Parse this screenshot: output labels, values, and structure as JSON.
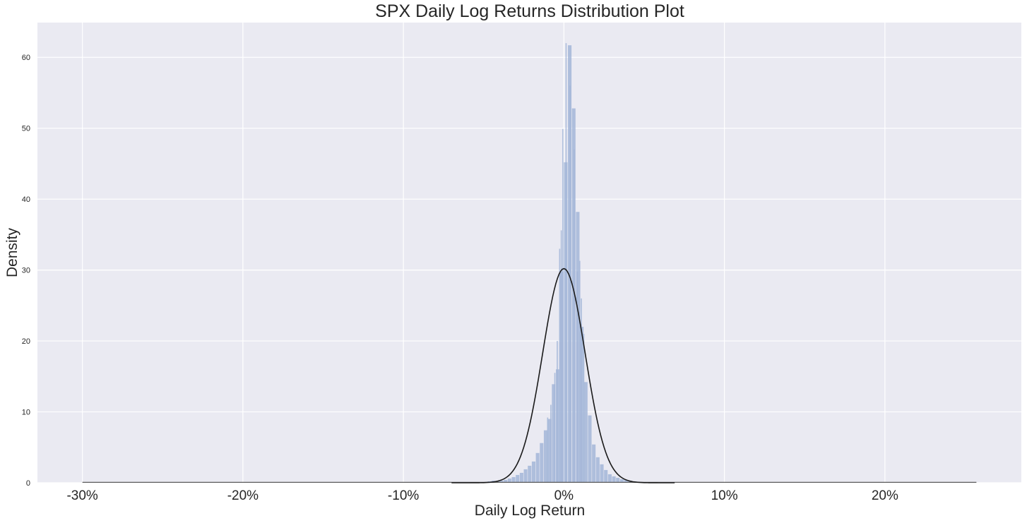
{
  "chart_data": {
    "type": "bar",
    "title": "SPX Daily Log Returns Distribution Plot",
    "xlabel": "Daily Log Return",
    "ylabel": "Density",
    "xlim": [
      -0.328,
      0.285
    ],
    "ylim": [
      0,
      64.9
    ],
    "x_ticks": [
      -0.3,
      -0.2,
      -0.1,
      0,
      0.1,
      0.2
    ],
    "x_tick_labels": [
      "-30%",
      "-20%",
      "-10%",
      "0%",
      "10%",
      "20%"
    ],
    "y_ticks": [
      0,
      10,
      20,
      30,
      40,
      50,
      60
    ],
    "y_tick_labels": [
      "0",
      "10",
      "20",
      "30",
      "40",
      "50",
      "60"
    ],
    "grid": true,
    "colors": {
      "background": "#eaeaf2",
      "grid": "#ffffff",
      "bars": "#a3b6d8",
      "curve": "#1a1a1a",
      "text": "#262626"
    },
    "histogram": {
      "bin_width": 0.0025,
      "bins": [
        [
          -0.0725,
          0.05
        ],
        [
          -0.07,
          0.05
        ],
        [
          -0.065,
          0.05
        ],
        [
          -0.0625,
          0.05
        ],
        [
          -0.06,
          0.1
        ],
        [
          -0.0575,
          0.05
        ],
        [
          -0.055,
          0.1
        ],
        [
          -0.05,
          0.1
        ],
        [
          -0.0475,
          0.2
        ],
        [
          -0.045,
          0.3
        ],
        [
          -0.0425,
          0.2
        ],
        [
          -0.04,
          0.3
        ],
        [
          -0.0375,
          0.4
        ],
        [
          -0.035,
          0.6
        ],
        [
          -0.0325,
          0.8
        ],
        [
          -0.03,
          1.1
        ],
        [
          -0.0275,
          1.4
        ],
        [
          -0.025,
          1.9
        ],
        [
          -0.0225,
          2.4
        ],
        [
          -0.02,
          3.0
        ],
        [
          -0.0175,
          4.2
        ],
        [
          -0.015,
          5.6
        ],
        [
          -0.0125,
          7.4
        ],
        [
          -0.01,
          9.0
        ],
        [
          -0.0075,
          13.9
        ],
        [
          -0.005,
          16.0
        ],
        [
          -0.0025,
          29.8
        ],
        [
          0.0,
          45.2
        ],
        [
          0.0025,
          61.7
        ],
        [
          0.005,
          52.8
        ],
        [
          0.0075,
          38.2
        ],
        [
          0.01,
          22.0
        ],
        [
          0.0125,
          14.2
        ],
        [
          0.015,
          9.5
        ],
        [
          0.0175,
          5.4
        ],
        [
          0.02,
          3.6
        ],
        [
          0.0225,
          2.6
        ],
        [
          0.025,
          1.8
        ],
        [
          0.0275,
          1.2
        ],
        [
          0.03,
          0.9
        ],
        [
          0.0325,
          0.7
        ],
        [
          0.035,
          0.5
        ],
        [
          0.0375,
          0.4
        ],
        [
          0.04,
          0.3
        ],
        [
          0.0425,
          0.2
        ],
        [
          0.045,
          0.15
        ],
        [
          0.0475,
          0.1
        ],
        [
          0.05,
          0.1
        ],
        [
          0.055,
          0.05
        ],
        [
          0.06,
          0.05
        ],
        [
          0.07,
          0.05
        ]
      ],
      "extra_peaks": [
        [
          -0.003,
          33.0
        ],
        [
          -0.001,
          49.9
        ],
        [
          0.001,
          62.0
        ],
        [
          0.0035,
          56.0
        ],
        [
          0.006,
          47.0
        ],
        [
          0.008,
          29.8
        ],
        [
          0.0095,
          31.3
        ],
        [
          0.0105,
          26.0
        ],
        [
          0.012,
          21.0
        ],
        [
          -0.002,
          35.6
        ],
        [
          -0.0045,
          20.0
        ],
        [
          -0.006,
          15.5
        ],
        [
          -0.0085,
          11.0
        ],
        [
          -0.0105,
          9.2
        ]
      ]
    },
    "fitted_normal": {
      "name": "",
      "mean": 0.0,
      "std": 0.0132,
      "x_range": [
        -0.3,
        0.257
      ],
      "peak_density": 30.2
    },
    "baseline": {
      "x_range": [
        -0.3,
        0.257
      ]
    }
  }
}
